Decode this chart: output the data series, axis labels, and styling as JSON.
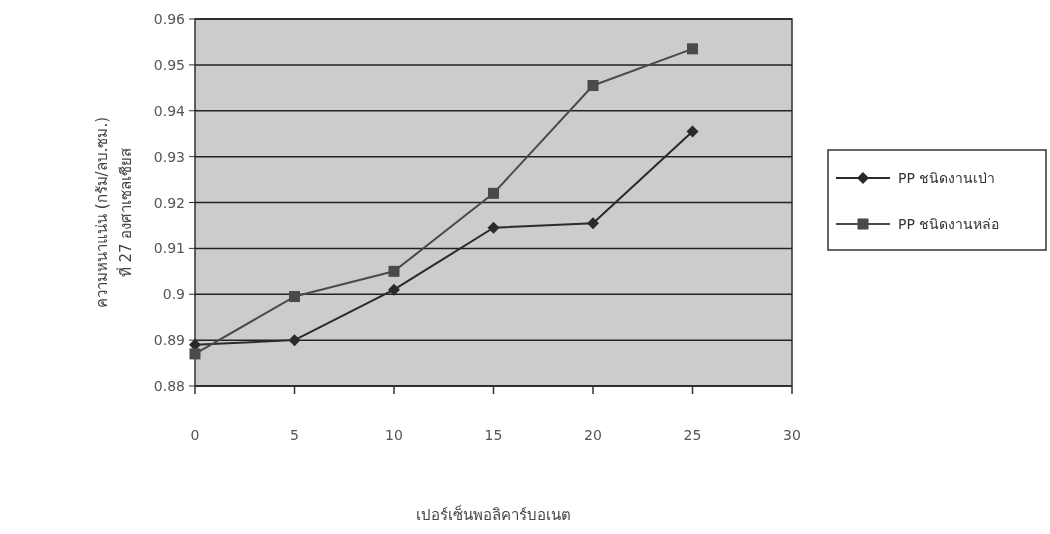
{
  "chart_data": {
    "type": "line",
    "xlabel": "เปอร์เซ็นพอลิคาร์บอเนต",
    "ylabel": "ความหนาแน่น (กรัม/ลบ.ซม.)\nที่ 27 องศาเซลเซียส",
    "x": [
      0,
      5,
      10,
      15,
      20,
      25
    ],
    "series": [
      {
        "name": "PP ชนิดงานเป่า",
        "color": "#2a2a2a",
        "marker": "diamond",
        "values": [
          0.889,
          0.89,
          0.901,
          0.9145,
          0.9155,
          0.9355
        ]
      },
      {
        "name": "PP ชนิดงานหล่อ",
        "color": "#4a4a4a",
        "marker": "square",
        "values": [
          0.887,
          0.8995,
          0.905,
          0.922,
          0.9455,
          0.9535
        ]
      }
    ],
    "xlim": [
      0,
      30
    ],
    "xticks": [
      0,
      5,
      10,
      15,
      20,
      25,
      30
    ],
    "ylim": [
      0.88,
      0.96
    ],
    "yticks": [
      0.88,
      0.89,
      {
        "value": 0.9,
        "label": "0.9"
      },
      0.91,
      0.92,
      0.93,
      0.94,
      0.95,
      0.96
    ],
    "grid": "y",
    "legend": "right",
    "line_style": "solid"
  }
}
